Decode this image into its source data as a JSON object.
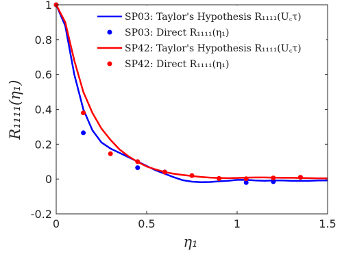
{
  "chart_data": {
    "type": "line",
    "xlabel": "η₁",
    "ylabel": "R₁₁₁₁(η₁)",
    "xlim": [
      0,
      1.5
    ],
    "ylim": [
      -0.2,
      1
    ],
    "x_ticks": [
      0,
      0.5,
      1,
      1.5
    ],
    "x_tick_labels": [
      "0",
      "0.5",
      "1",
      "1.5"
    ],
    "y_ticks": [
      -0.2,
      0,
      0.2,
      0.4,
      0.6,
      0.8,
      1
    ],
    "y_tick_labels": [
      "-0.2",
      "0",
      "0.2",
      "0.4",
      "0.6",
      "0.8",
      "1"
    ],
    "grid": false,
    "legend_position": "top-right",
    "series": [
      {
        "name": "SP03: Taylor's Hypothesis R₁₁₁₁(U꜀τ)",
        "kind": "line",
        "color": "#0000ff",
        "x": [
          0,
          0.05,
          0.1,
          0.15,
          0.2,
          0.25,
          0.3,
          0.35,
          0.4,
          0.45,
          0.5,
          0.55,
          0.6,
          0.65,
          0.7,
          0.75,
          0.8,
          0.85,
          0.9,
          0.95,
          1.0,
          1.05,
          1.1,
          1.15,
          1.2,
          1.25,
          1.3,
          1.35,
          1.4,
          1.45,
          1.5
        ],
        "y": [
          1.0,
          0.88,
          0.6,
          0.4,
          0.28,
          0.21,
          0.175,
          0.15,
          0.125,
          0.1,
          0.075,
          0.05,
          0.03,
          0.01,
          -0.007,
          -0.015,
          -0.018,
          -0.017,
          -0.013,
          -0.01,
          -0.005,
          -0.005,
          -0.008,
          -0.01,
          -0.008,
          -0.008,
          -0.01,
          -0.01,
          -0.01,
          -0.008,
          -0.008
        ]
      },
      {
        "name": "SP03: Direct R₁₁₁₁(η₁)",
        "kind": "scatter",
        "color": "#0000ff",
        "x": [
          0,
          0.15,
          0.45,
          0.6,
          1.05,
          1.2
        ],
        "y": [
          1.0,
          0.265,
          0.065,
          0.04,
          -0.02,
          -0.015
        ]
      },
      {
        "name": "SP42: Taylor's Hypothesis R₁₁₁₁(U꜀τ)",
        "kind": "line",
        "color": "#ff0000",
        "x": [
          0,
          0.05,
          0.1,
          0.15,
          0.2,
          0.25,
          0.3,
          0.35,
          0.4,
          0.45,
          0.5,
          0.55,
          0.6,
          0.65,
          0.7,
          0.75,
          0.8,
          0.85,
          0.9,
          0.95,
          1.0,
          1.05,
          1.1,
          1.15,
          1.2,
          1.25,
          1.3,
          1.35,
          1.4,
          1.45,
          1.5
        ],
        "y": [
          1.0,
          0.9,
          0.68,
          0.5,
          0.38,
          0.29,
          0.225,
          0.17,
          0.13,
          0.098,
          0.072,
          0.055,
          0.04,
          0.03,
          0.023,
          0.017,
          0.012,
          0.008,
          0.006,
          0.005,
          0.006,
          0.008,
          0.009,
          0.009,
          0.008,
          0.007,
          0.007,
          0.006,
          0.005,
          0.004,
          0.004
        ]
      },
      {
        "name": "SP42: Direct R₁₁₁₁(η₁)",
        "kind": "scatter",
        "color": "#ff0000",
        "x": [
          0,
          0.15,
          0.3,
          0.45,
          0.6,
          0.75,
          0.9,
          1.05,
          1.2,
          1.35
        ],
        "y": [
          1.0,
          0.38,
          0.145,
          0.1,
          0.04,
          0.02,
          0.003,
          0.002,
          0.006,
          0.01
        ]
      }
    ]
  }
}
